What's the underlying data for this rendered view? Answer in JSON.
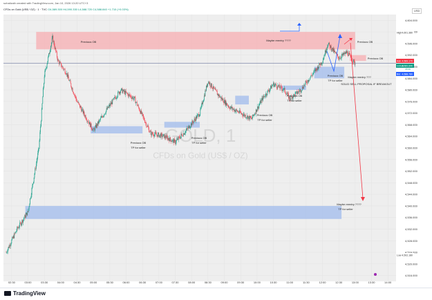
{
  "header": {
    "author_line": "sohailzaib created with TradingView.com, Jan 10, 2026 13:20 UTC+3",
    "symbol": "CFDs on Gold (US$ / OZ) · 1 · TVC",
    "ohlc": "O4,589.300 H4,590.330 L4,588.720 C4,588.840 +1.710 (+0.03%)",
    "currency": "USD"
  },
  "watermark": {
    "ticker": "GOLD, 1",
    "name": "CFDs on Gold (US$ / OZ)"
  },
  "footer": {
    "brand": "TradingView"
  },
  "badges": {
    "high_label": "High",
    "high_value": "4,601.380",
    "low_label": "Low",
    "low_value": "4,502.180",
    "ask_label": "Ask",
    "ask_value": "4,589.170",
    "gold_label": "GOLD",
    "gold_value": "4,589.840",
    "gold_sub": "00:39",
    "bid_label": "Bid",
    "bid_value": "4,588.780"
  },
  "annotations": {
    "previous_ob": "Previous OB",
    "tp_for_seller": "TP for seller",
    "maybe_reentry": "Maybe reentry ????",
    "maybe_reentry_short": "Maybe reentry ???",
    "solid_sell": "SOLID SELL PROPOSAL IF BREAKOUT"
  },
  "colors": {
    "background": "#ffffff",
    "plot_background": "#eeeeee",
    "up": "#089981",
    "down": "#f23645",
    "red_zone": "#f6b5b9",
    "blue_zone": "#a9c1ec",
    "arrow_blue": "#2962ff",
    "arrow_red": "#f23645"
  },
  "chart_data": {
    "type": "candlestick",
    "title": "CFDs on Gold (US$ / OZ) · 1 · TVC",
    "ylabel": "USD",
    "ylim": [
      4514,
      4606
    ],
    "x_ticks": [
      "02:30",
      "03:00",
      "03:30",
      "04:00",
      "04:30",
      "05:00",
      "05:30",
      "06:00",
      "06:30",
      "07:00",
      "07:30",
      "08:00",
      "08:30",
      "09:00",
      "09:30",
      "10:00",
      "10:30",
      "11:00",
      "11:30",
      "12:00",
      "12:30",
      "13:00",
      "13:30",
      "14:00"
    ],
    "y_ticks": [
      4604,
      4600,
      4596,
      4592,
      4588,
      4584,
      4580,
      4576,
      4572,
      4568,
      4564,
      4560,
      4556,
      4552,
      4548,
      4544,
      4540,
      4536,
      4532,
      4528,
      4524,
      4520,
      4516
    ],
    "price_path": [
      [
        "02:20",
        4524
      ],
      [
        "02:40",
        4532
      ],
      [
        "03:00",
        4538
      ],
      [
        "03:20",
        4560
      ],
      [
        "03:30",
        4585
      ],
      [
        "03:45",
        4598
      ],
      [
        "03:55",
        4590
      ],
      [
        "04:10",
        4586
      ],
      [
        "04:30",
        4576
      ],
      [
        "05:00",
        4566
      ],
      [
        "05:20",
        4572
      ],
      [
        "05:50",
        4580
      ],
      [
        "06:15",
        4577
      ],
      [
        "06:45",
        4565
      ],
      [
        "07:10",
        4564
      ],
      [
        "07:30",
        4562
      ],
      [
        "07:50",
        4566
      ],
      [
        "08:15",
        4572
      ],
      [
        "08:30",
        4583
      ],
      [
        "08:50",
        4578
      ],
      [
        "09:10",
        4574
      ],
      [
        "09:30",
        4572
      ],
      [
        "09:50",
        4570
      ],
      [
        "10:10",
        4577
      ],
      [
        "10:30",
        4582
      ],
      [
        "10:50",
        4580
      ],
      [
        "11:00",
        4577
      ],
      [
        "11:20",
        4580
      ],
      [
        "11:40",
        4585
      ],
      [
        "12:00",
        4590
      ],
      [
        "12:10",
        4596
      ],
      [
        "12:30",
        4591
      ],
      [
        "12:45",
        4593
      ],
      [
        "13:00",
        4589
      ]
    ],
    "zones": [
      {
        "kind": "supply",
        "x0": "03:15",
        "x1": "13:00",
        "y0": 4594,
        "y1": 4600,
        "label": "Previous OB"
      },
      {
        "kind": "supply",
        "x0": "12:50",
        "x1": "13:20",
        "y0": 4590,
        "y1": 4592,
        "label": "Previous OB"
      },
      {
        "kind": "demand",
        "x0": "04:55",
        "x1": "06:30",
        "y0": 4565,
        "y1": 4567.5,
        "label": "Previous OB",
        "tp": "TP for seller"
      },
      {
        "kind": "demand",
        "x0": "07:10",
        "x1": "08:15",
        "y0": 4567,
        "y1": 4569,
        "label": "Previous OB",
        "tp": "TP for seller"
      },
      {
        "kind": "demand",
        "x0": "09:20",
        "x1": "09:45",
        "y0": 4575,
        "y1": 4578,
        "label": "Previous OB",
        "tp": "TP for seller"
      },
      {
        "kind": "demand",
        "x0": "10:45",
        "x1": "11:30",
        "y0": 4580,
        "y1": 4581.5,
        "label": "Previous OB",
        "tp": "TP for seller"
      },
      {
        "kind": "demand",
        "x0": "11:45",
        "x1": "12:40",
        "y0": 4584,
        "y1": 4588,
        "label": "Previous OB",
        "tp": "TP for seller"
      },
      {
        "kind": "demand",
        "x0": "02:55",
        "x1": "12:35",
        "y0": 4535.5,
        "y1": 4540,
        "label": "Maybe reentry ????",
        "tp": "TP for seller"
      }
    ],
    "horizontal_line": 4589.2,
    "projection": {
      "from": [
        "12:40",
        4594
      ],
      "to": [
        "12:58",
        4541
      ],
      "color": "red"
    }
  }
}
